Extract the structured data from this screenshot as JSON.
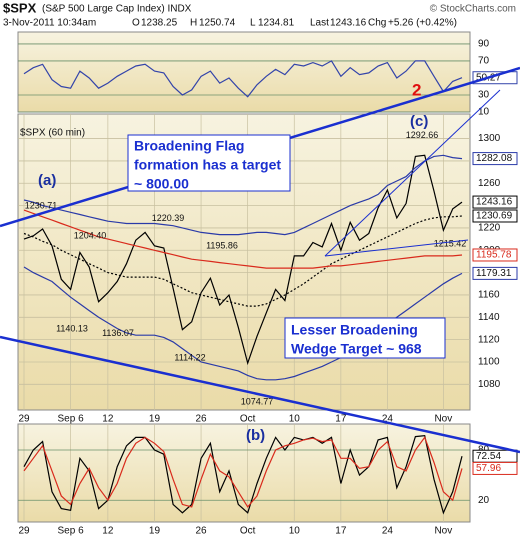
{
  "header": {
    "symbol": "$SPX",
    "name": "(S&P 500 Large Cap Index) INDX",
    "source": "© StockCharts.com",
    "date": "3-Nov-2011 10:34am",
    "quote": [
      {
        "label": "O",
        "value": 1238.25
      },
      {
        "label": "H",
        "value": 1250.74
      },
      {
        "label": "L",
        "value": 1234.81
      },
      {
        "label": "Last",
        "value": 1243.16
      },
      {
        "label": "Chg",
        "value": "+5.26 (+0.42%)"
      }
    ]
  },
  "chart_data": [
    {
      "type": "line",
      "ylim": [
        10,
        104
      ],
      "yticks": [
        90,
        70,
        30,
        10
      ],
      "color": "#3344aa",
      "annotation": "2",
      "values": [
        55,
        62,
        66,
        48,
        40,
        38,
        58,
        50,
        38,
        44,
        52,
        58,
        64,
        66,
        58,
        56,
        40,
        30,
        36,
        52,
        58,
        44,
        50,
        38,
        28,
        42,
        52,
        60,
        54,
        66,
        64,
        68,
        64,
        70,
        52,
        62,
        54,
        56,
        64,
        68,
        50,
        58,
        70,
        70,
        52,
        34,
        46,
        50.27
      ]
    },
    {
      "type": "line",
      "label": "$SPX (60 min)",
      "categories": [
        "29",
        null,
        null,
        null,
        null,
        "Sep 6",
        null,
        null,
        null,
        "12",
        null,
        null,
        null,
        null,
        "19",
        null,
        null,
        null,
        null,
        "26",
        null,
        null,
        null,
        null,
        "Oct",
        null,
        null,
        null,
        null,
        "10",
        null,
        null,
        null,
        null,
        "17",
        null,
        null,
        null,
        null,
        "24",
        null,
        null,
        null,
        null,
        null,
        "Nov",
        null,
        null
      ],
      "ylim": [
        1057,
        1322
      ],
      "yticks": [
        1080,
        1100,
        1120,
        1140,
        1160,
        1180,
        1200,
        1220,
        1240,
        1260,
        1280,
        1300
      ],
      "series": [
        {
          "color": "#000000",
          "values": [
            1210,
            1213,
            1219,
            1204,
            1174,
            1165,
            1198,
            1185,
            1154,
            1162,
            1172,
            1188,
            1209,
            1216,
            1204,
            1202,
            1166,
            1129,
            1136,
            1162,
            1175,
            1151,
            1160,
            1131,
            1099,
            1123,
            1144,
            1165,
            1155,
            1195,
            1195,
            1207,
            1203,
            1224,
            1200,
            1225,
            1209,
            1215,
            1238,
            1254,
            1229,
            1242,
            1284,
            1285,
            1253,
            1218,
            1237,
            1243.16
          ]
        },
        {
          "color": "#2a3aa8",
          "values": [
            1245,
            1243,
            1240,
            1238,
            1236,
            1234,
            1232,
            1230,
            1228,
            1226,
            1225,
            1224,
            1224,
            1224,
            1224,
            1223,
            1222,
            1220,
            1218,
            1216,
            1215,
            1214,
            1214,
            1214,
            1215,
            1216,
            1216,
            1215,
            1214,
            1216,
            1220,
            1224,
            1228,
            1232,
            1236,
            1240,
            1243,
            1246,
            1250,
            1258,
            1262,
            1266,
            1274,
            1280,
            1284,
            1285,
            1283,
            1282.08
          ]
        },
        {
          "color": "#000000",
          "dash": true,
          "values": [
            1215,
            1212,
            1208,
            1205,
            1200,
            1196,
            1192,
            1188,
            1184,
            1180,
            1178,
            1176,
            1176,
            1176,
            1176,
            1174,
            1170,
            1166,
            1162,
            1160,
            1158,
            1156,
            1154,
            1152,
            1150,
            1150,
            1152,
            1156,
            1160,
            1165,
            1170,
            1176,
            1182,
            1188,
            1192,
            1196,
            1200,
            1204,
            1208,
            1212,
            1216,
            1220,
            1224,
            1227,
            1229,
            1230,
            1230,
            1230.69
          ]
        },
        {
          "color": "#d92a1c",
          "values": [
            1236,
            1233,
            1230,
            1227,
            1224,
            1221,
            1218,
            1215,
            1212,
            1210,
            1208,
            1206,
            1204,
            1202,
            1200,
            1198,
            1196,
            1194,
            1192,
            1191,
            1190,
            1189,
            1188,
            1187,
            1186,
            1185,
            1184,
            1184,
            1184,
            1184,
            1184,
            1184,
            1185,
            1186,
            1186,
            1187,
            1188,
            1189,
            1190,
            1191,
            1192,
            1193,
            1194,
            1195,
            1195,
            1195,
            1195,
            1195.78
          ]
        },
        {
          "color": "#2a3aa8",
          "values": [
            1185,
            1180,
            1176,
            1172,
            1165,
            1158,
            1152,
            1146,
            1140,
            1135,
            1130,
            1126,
            1124,
            1124,
            1124,
            1122,
            1118,
            1112,
            1106,
            1100,
            1098,
            1096,
            1094,
            1092,
            1088,
            1085,
            1084,
            1084,
            1085,
            1087,
            1090,
            1093,
            1096,
            1100,
            1104,
            1110,
            1116,
            1122,
            1128,
            1134,
            1140,
            1146,
            1152,
            1158,
            1164,
            1170,
            1175,
            1179.31
          ]
        }
      ],
      "price_labels": [
        1230.71,
        {
          "value": 1204.4,
          "label": "1204.40"
        },
        1220.39,
        1195.86,
        1140.13,
        1136.07,
        1114.22,
        1074.77,
        1292.66,
        1215.42
      ],
      "annotations": [
        "(a)",
        "(c)"
      ],
      "notes": [
        [
          "Broadening Flag",
          "formation has a target",
          "~ 800.00"
        ],
        [
          "Lesser Broadening",
          "Wedge Target ~ 968"
        ]
      ]
    },
    {
      "type": "line",
      "categories": [
        "29",
        null,
        null,
        null,
        null,
        "Sep 6",
        null,
        null,
        null,
        "12",
        null,
        null,
        null,
        null,
        "19",
        null,
        null,
        null,
        null,
        "26",
        null,
        null,
        null,
        null,
        "Oct",
        null,
        null,
        null,
        null,
        "10",
        null,
        null,
        null,
        null,
        "17",
        null,
        null,
        null,
        null,
        "24",
        null,
        null,
        null,
        null,
        null,
        "Nov",
        null,
        null
      ],
      "ylim": [
        -6,
        111
      ],
      "yticks": [
        80,
        20
      ],
      "annotation": "(b)",
      "series": [
        {
          "color": "#000000",
          "values": [
            60,
            80,
            90,
            30,
            10,
            8,
            70,
            55,
            10,
            20,
            60,
            85,
            95,
            95,
            80,
            75,
            15,
            5,
            15,
            70,
            88,
            30,
            55,
            15,
            5,
            40,
            70,
            95,
            80,
            95,
            92,
            95,
            88,
            95,
            40,
            80,
            50,
            60,
            92,
            95,
            35,
            60,
            96,
            97,
            45,
            5,
            30,
            72.54
          ]
        },
        {
          "color": "#d92a1c",
          "values": [
            55,
            70,
            85,
            55,
            25,
            15,
            40,
            58,
            35,
            20,
            40,
            70,
            88,
            95,
            88,
            78,
            45,
            15,
            12,
            45,
            75,
            55,
            48,
            30,
            12,
            25,
            55,
            80,
            85,
            88,
            92,
            94,
            90,
            92,
            70,
            70,
            58,
            60,
            80,
            90,
            60,
            55,
            80,
            95,
            65,
            30,
            20,
            57.96
          ]
        }
      ]
    }
  ]
}
